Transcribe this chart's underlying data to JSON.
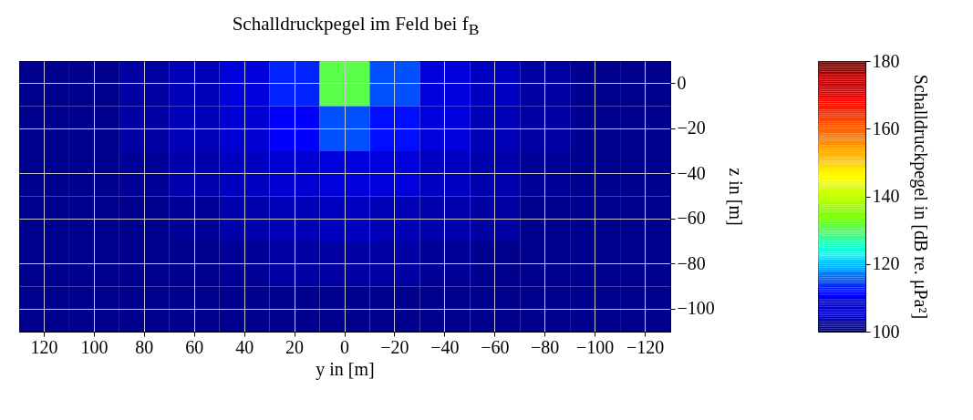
{
  "chart_data": {
    "type": "heatmap",
    "title": "Schalldruckpegel im Feld bei f$_{B}$",
    "xlabel": "y in [m]",
    "ylabel": "z in [m]",
    "clabel": "Schalldruckpegel in [dB re. μPa²]",
    "categories": [
      "120",
      "100",
      "80",
      "60",
      "40",
      "20",
      "0",
      "−20",
      "−40",
      "−60",
      "−80",
      "−100",
      "−120"
    ],
    "y_categories": [
      "0",
      "−20",
      "−40",
      "−60",
      "−80",
      "−100"
    ],
    "clim": [
      100,
      180
    ],
    "cticks": [
      100,
      120,
      140,
      160,
      180
    ],
    "grid": true,
    "cells": [
      [
        100,
        100,
        102,
        104,
        108,
        113,
        131,
        115,
        108,
        105,
        102,
        100,
        100
      ],
      [
        100,
        100,
        102,
        104,
        107,
        111,
        115,
        112,
        108,
        104,
        102,
        100,
        100
      ],
      [
        100,
        100,
        101,
        103,
        105,
        107,
        108,
        108,
        105,
        103,
        101,
        100,
        100
      ],
      [
        100,
        100,
        100,
        101,
        103,
        104,
        105,
        104,
        103,
        102,
        100,
        100,
        100
      ],
      [
        100,
        100,
        100,
        100,
        101,
        102,
        102,
        102,
        101,
        100,
        100,
        100,
        100
      ],
      [
        100,
        100,
        100,
        100,
        100,
        100,
        100,
        100,
        100,
        100,
        100,
        100,
        100
      ]
    ]
  }
}
